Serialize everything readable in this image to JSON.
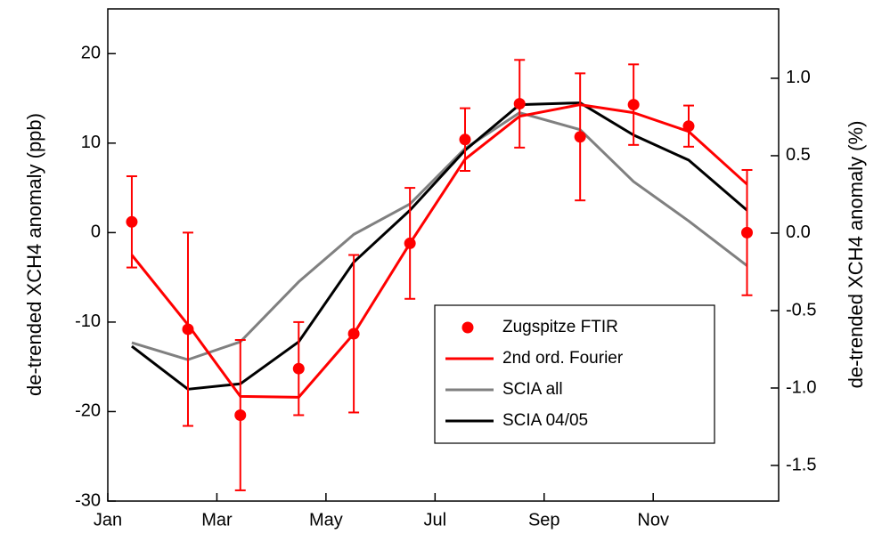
{
  "chart_data": {
    "type": "line",
    "x": [
      1.44,
      2.47,
      3.43,
      4.5,
      5.51,
      6.54,
      7.55,
      8.55,
      9.66,
      10.64,
      11.65,
      12.72
    ],
    "xlim": [
      1,
      13.3
    ],
    "xticks": [
      {
        "value": 1,
        "label": "Jan"
      },
      {
        "value": 3,
        "label": "Mar"
      },
      {
        "value": 5,
        "label": "May"
      },
      {
        "value": 7,
        "label": "Jul"
      },
      {
        "value": 9,
        "label": "Sep"
      },
      {
        "value": 11,
        "label": "Nov"
      }
    ],
    "ylabel": "de-trended XCH4 anomaly (ppb)",
    "y2label": "de-trended XCH4 anomaly (%)",
    "ylim": [
      -30,
      25
    ],
    "yticks": [
      -30,
      -20,
      -10,
      0,
      10,
      20
    ],
    "y2lim": [
      -1.73,
      1.448
    ],
    "y2ticks": [
      -1.5,
      {
        "value": -1.0,
        "label": "-1.0"
      },
      -0.5,
      {
        "value": 0.0,
        "label": "0.0"
      },
      0.5,
      {
        "value": 1.0,
        "label": "1.0"
      }
    ],
    "series": [
      {
        "name": "Zugspitze FTIR",
        "color": "#ff0000",
        "style": "markers",
        "values": [
          1.2,
          -10.8,
          -20.4,
          -15.2,
          -11.3,
          -1.2,
          10.4,
          14.4,
          10.7,
          14.3,
          11.9,
          0
        ],
        "errors": [
          5.1,
          10.8,
          8.4,
          5.2,
          8.8,
          6.2,
          3.5,
          4.9,
          7.1,
          4.5,
          2.3,
          7
        ]
      },
      {
        "name": "2nd ord. Fourier",
        "color": "#ff0000",
        "style": "line",
        "values": [
          -2.5,
          -10.3,
          -18.3,
          -18.4,
          -11.3,
          -1.2,
          8.2,
          13.0,
          14.3,
          13.4,
          11.3,
          5.4
        ]
      },
      {
        "name": "SCIA all",
        "color": "#808080",
        "style": "line",
        "values": [
          -12.3,
          -14.2,
          -12.2,
          -5.5,
          -0.2,
          3.2,
          9.4,
          13.4,
          11.5,
          5.7,
          1.3,
          -3.7
        ]
      },
      {
        "name": "SCIA 04/05",
        "color": "#000000",
        "style": "line",
        "values": [
          -12.7,
          -17.5,
          -16.9,
          -12.2,
          -3.3,
          2.5,
          9.2,
          14.3,
          14.5,
          10.9,
          8.1,
          2.5
        ]
      }
    ],
    "legend": "lower-right"
  }
}
